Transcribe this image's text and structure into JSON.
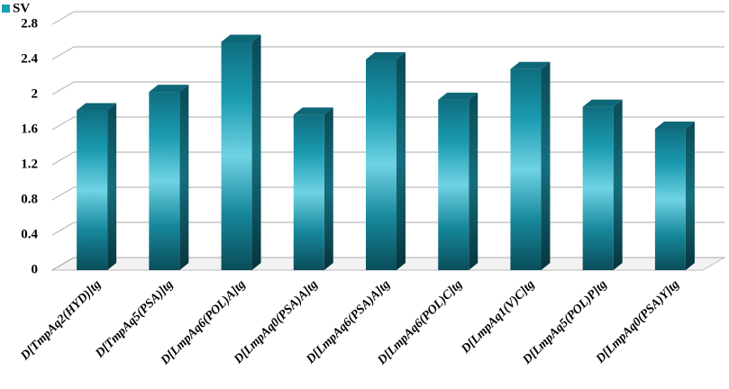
{
  "chart_data": {
    "type": "bar3d",
    "categories": [
      "D[TmpAq2(HYD)]tg",
      "D[TmpAq5(PSA)]tg",
      "D[LmpAq6(POL)A]tg",
      "D[LmpAq0(PSA)A]tg",
      "D[LmpAq6(PSA)A]tg",
      "D[LmpAq6(POL)C]tg",
      "D[LmpAq1(V)C]tg",
      "D[LmpAq5(POL)P]tg",
      "D[LmpAq0(PSA)Y]tg"
    ],
    "series": [
      {
        "name": "SV",
        "color": "#1a9fb4",
        "values": [
          1.82,
          2.03,
          2.6,
          1.77,
          2.4,
          1.94,
          2.29,
          1.86,
          1.61
        ]
      }
    ],
    "ylim": [
      0,
      2.8
    ],
    "yticks": [
      0,
      0.4,
      0.8,
      1.2,
      1.6,
      2,
      2.4,
      2.8
    ],
    "grid": true,
    "legend": "top-left"
  }
}
